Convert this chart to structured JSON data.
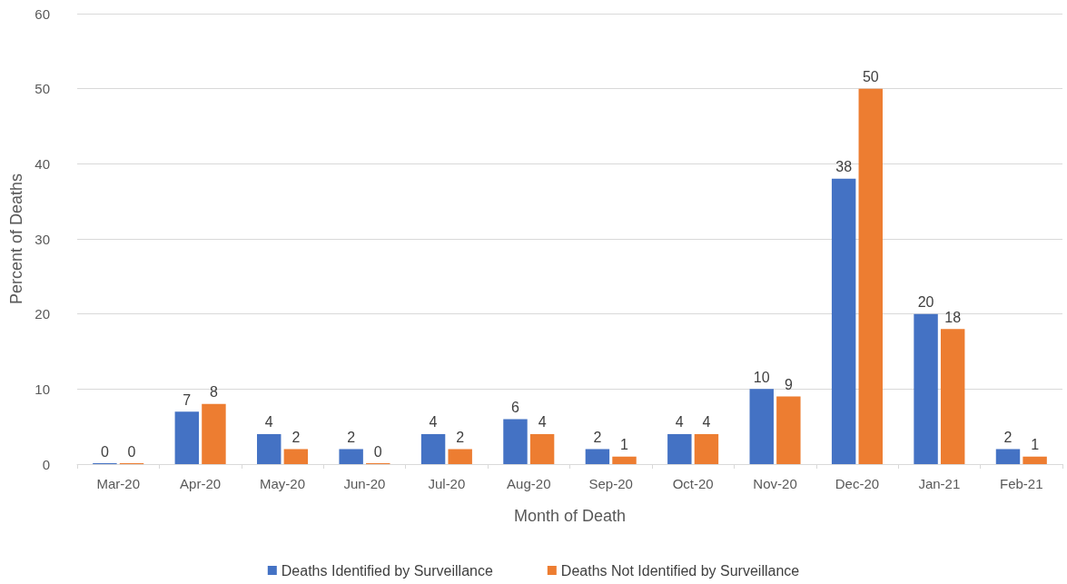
{
  "chart_data": {
    "type": "bar",
    "xlabel": "Month of Death",
    "ylabel": "Percent of Deaths",
    "categories": [
      "Mar-20",
      "Apr-20",
      "May-20",
      "Jun-20",
      "Jul-20",
      "Aug-20",
      "Sep-20",
      "Oct-20",
      "Nov-20",
      "Dec-20",
      "Jan-21",
      "Feb-21"
    ],
    "series": [
      {
        "name": "Deaths Identified by Surveillance",
        "color": "#4472c4",
        "values": [
          0,
          7,
          4,
          2,
          4,
          6,
          2,
          4,
          10,
          38,
          20,
          2
        ]
      },
      {
        "name": "Deaths Not Identified by Surveillance",
        "color": "#ed7d31",
        "values": [
          0,
          8,
          2,
          0,
          2,
          4,
          1,
          4,
          9,
          50,
          18,
          1
        ]
      }
    ],
    "ylim": [
      0,
      60
    ],
    "yticks": [
      0,
      10,
      20,
      30,
      40,
      50,
      60
    ],
    "grid": "y",
    "legend": "bottom",
    "data_labels": true
  }
}
